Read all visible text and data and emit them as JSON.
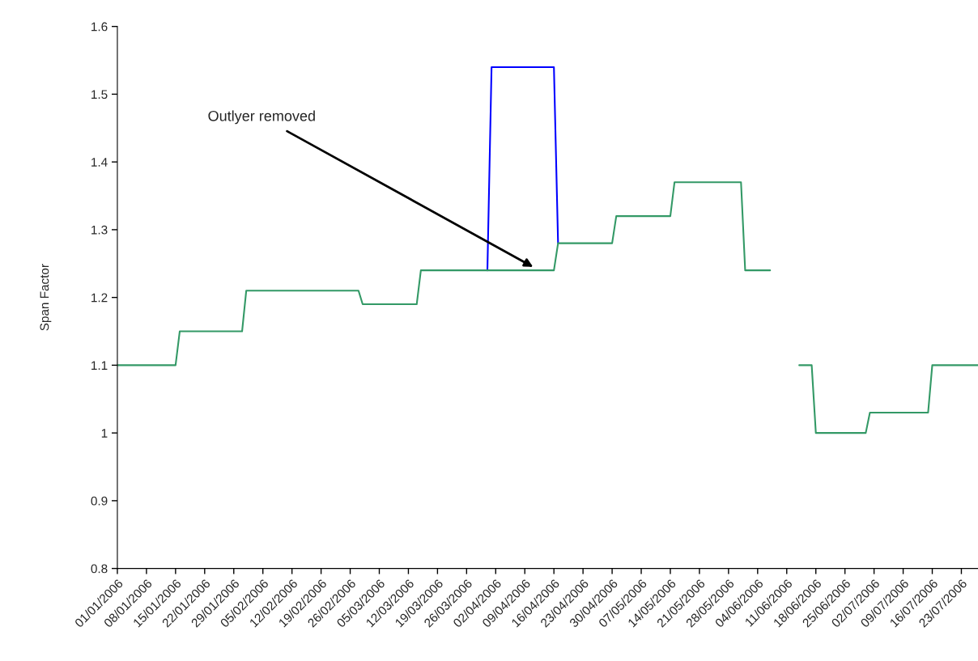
{
  "chart_data": {
    "type": "line",
    "ylabel": "Span Factor",
    "series": [
      {
        "color": "#0000ff",
        "x": [
          "2006-03-31",
          "2006-04-01",
          "2006-04-16",
          "2006-04-17"
        ],
        "values": [
          1.24,
          1.54,
          1.54,
          1.28
        ]
      },
      {
        "color": "#339966",
        "x": [
          "2006-01-01",
          "2006-01-15",
          "2006-01-16",
          "2006-01-31",
          "2006-02-01",
          "2006-02-28",
          "2006-03-01",
          "2006-03-14",
          "2006-03-15",
          "2006-04-16",
          "2006-04-17",
          "2006-04-30",
          "2006-05-01",
          "2006-05-14",
          "2006-05-15",
          "2006-05-31",
          "2006-06-01",
          "2006-06-07",
          "2006-06-10",
          "2006-06-14",
          "2006-06-17",
          "2006-06-18",
          "2006-06-30",
          "2006-07-01",
          "2006-07-15",
          "2006-07-16",
          "2006-07-27"
        ],
        "values": [
          1.1,
          1.1,
          1.15,
          1.15,
          1.21,
          1.21,
          1.19,
          1.19,
          1.24,
          1.24,
          1.28,
          1.28,
          1.32,
          1.32,
          1.37,
          1.37,
          1.24,
          1.24,
          null,
          1.1,
          1.1,
          1.0,
          1.0,
          1.03,
          1.03,
          1.1,
          1.1
        ]
      }
    ],
    "annotations": [
      {
        "text": "Outlyer removed",
        "x": "2006-04-11",
        "y": 1.245
      }
    ],
    "xlim": [
      "2006-01-01",
      "2006-07-27"
    ],
    "xticks": [
      {
        "value": "2006-01-01",
        "label": "01/01/2006"
      },
      {
        "value": "2006-01-08",
        "label": "08/01/2006"
      },
      {
        "value": "2006-01-15",
        "label": "15/01/2006"
      },
      {
        "value": "2006-01-22",
        "label": "22/01/2006"
      },
      {
        "value": "2006-01-29",
        "label": "29/01/2006"
      },
      {
        "value": "2006-02-05",
        "label": "05/02/2006"
      },
      {
        "value": "2006-02-12",
        "label": "12/02/2006"
      },
      {
        "value": "2006-02-19",
        "label": "19/02/2006"
      },
      {
        "value": "2006-02-26",
        "label": "26/02/2006"
      },
      {
        "value": "2006-03-05",
        "label": "05/03/2006"
      },
      {
        "value": "2006-03-12",
        "label": "12/03/2006"
      },
      {
        "value": "2006-03-19",
        "label": "19/03/2006"
      },
      {
        "value": "2006-03-26",
        "label": "26/03/2006"
      },
      {
        "value": "2006-04-02",
        "label": "02/04/2006"
      },
      {
        "value": "2006-04-09",
        "label": "09/04/2006"
      },
      {
        "value": "2006-04-16",
        "label": "16/04/2006"
      },
      {
        "value": "2006-04-23",
        "label": "23/04/2006"
      },
      {
        "value": "2006-04-30",
        "label": "30/04/2006"
      },
      {
        "value": "2006-05-07",
        "label": "07/05/2006"
      },
      {
        "value": "2006-05-14",
        "label": "14/05/2006"
      },
      {
        "value": "2006-05-21",
        "label": "21/05/2006"
      },
      {
        "value": "2006-05-28",
        "label": "28/05/2006"
      },
      {
        "value": "2006-06-04",
        "label": "04/06/2006"
      },
      {
        "value": "2006-06-11",
        "label": "11/06/2006"
      },
      {
        "value": "2006-06-18",
        "label": "18/06/2006"
      },
      {
        "value": "2006-06-25",
        "label": "25/06/2006"
      },
      {
        "value": "2006-07-02",
        "label": "02/07/2006"
      },
      {
        "value": "2006-07-09",
        "label": "09/07/2006"
      },
      {
        "value": "2006-07-16",
        "label": "16/07/2006"
      },
      {
        "value": "2006-07-23",
        "label": "23/07/2006"
      }
    ],
    "ylim": [
      0.8,
      1.6
    ],
    "yticks": [
      0.8,
      0.9,
      1,
      1.1,
      1.2,
      1.3,
      1.4,
      1.5,
      1.6
    ],
    "grid": false,
    "legend": false,
    "marker": "none",
    "line_style": "solid"
  }
}
